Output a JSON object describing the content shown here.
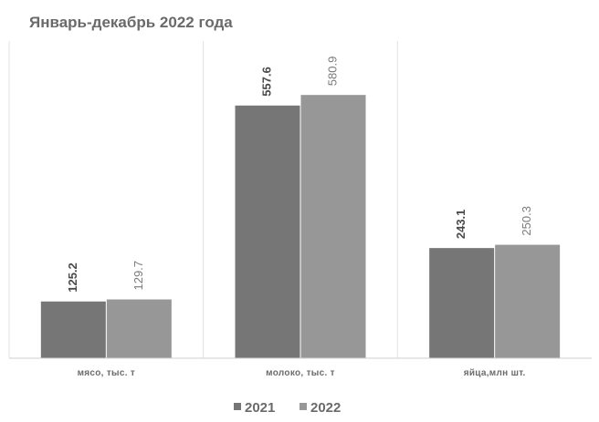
{
  "chart_data": {
    "type": "bar",
    "title": "Январь-декабрь 2022 года",
    "categories": [
      "мясо, тыс. т",
      "молоко, тыс. т",
      "яйца,млн шт."
    ],
    "series": [
      {
        "name": "2021",
        "values": [
          125.2,
          557.6,
          243.1
        ],
        "value_labels": [
          "125.2",
          "557.6",
          "243.1"
        ],
        "color": "#767676"
      },
      {
        "name": "2022",
        "values": [
          129.7,
          580.9,
          250.3
        ],
        "value_labels": [
          "129.7",
          "580.9",
          "250.3"
        ],
        "color": "#979797"
      }
    ],
    "ylim": [
      0,
      700
    ],
    "legend_position": "bottom",
    "grid": false,
    "category_separators": true,
    "xlabel": "",
    "ylabel": ""
  }
}
